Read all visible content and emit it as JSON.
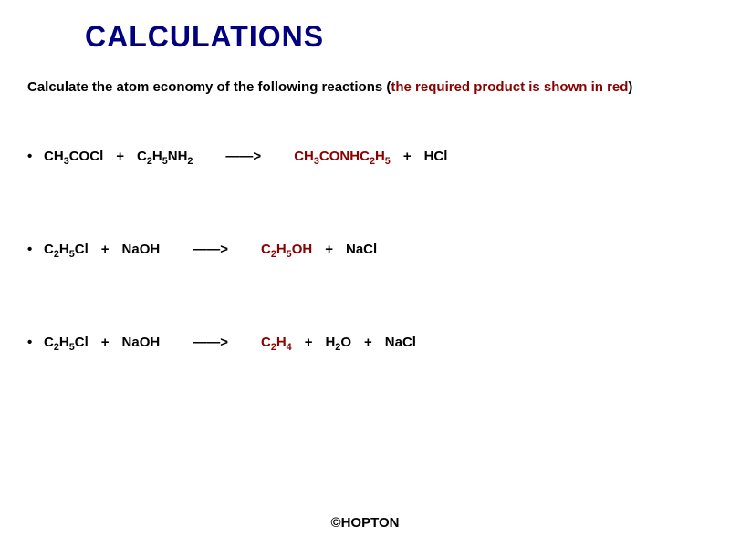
{
  "title": "CALCULATIONS",
  "colors": {
    "title": "#000080",
    "body_text": "#000000",
    "highlight": "#8b0000",
    "background": "#ffffff"
  },
  "typography": {
    "title_fontsize_pt": 24,
    "body_fontsize_pt": 11,
    "font_family": "Arial",
    "weight": "bold"
  },
  "instruction": {
    "prefix": "Calculate the atom economy of the following reactions (",
    "highlight": "the required product is shown in red",
    "suffix": ")"
  },
  "arrow": "——>",
  "plus": "+",
  "bullet": "•",
  "reactions": [
    {
      "reactants": [
        {
          "text": "CH3COCl",
          "subs": [
            2
          ]
        },
        {
          "text": "C2H5NH2",
          "subs": [
            1,
            3,
            6
          ]
        }
      ],
      "products": [
        {
          "text": "CH3CONHC2H5",
          "subs": [
            2,
            8,
            10
          ],
          "required": true
        },
        {
          "text": "HCl",
          "subs": []
        }
      ]
    },
    {
      "reactants": [
        {
          "text": "C2H5Cl",
          "subs": [
            1,
            3
          ]
        },
        {
          "text": "NaOH",
          "subs": []
        }
      ],
      "products": [
        {
          "text": "C2H5OH",
          "subs": [
            1,
            3
          ],
          "required": true
        },
        {
          "text": "NaCl",
          "subs": []
        }
      ]
    },
    {
      "reactants": [
        {
          "text": "C2H5Cl",
          "subs": [
            1,
            3
          ]
        },
        {
          "text": "NaOH",
          "subs": []
        }
      ],
      "products": [
        {
          "text": "C2H4",
          "subs": [
            1,
            3
          ],
          "required": true
        },
        {
          "text": "H2O",
          "subs": [
            1
          ]
        },
        {
          "text": "NaCl",
          "subs": []
        }
      ]
    }
  ],
  "attribution": "©HOPTON"
}
